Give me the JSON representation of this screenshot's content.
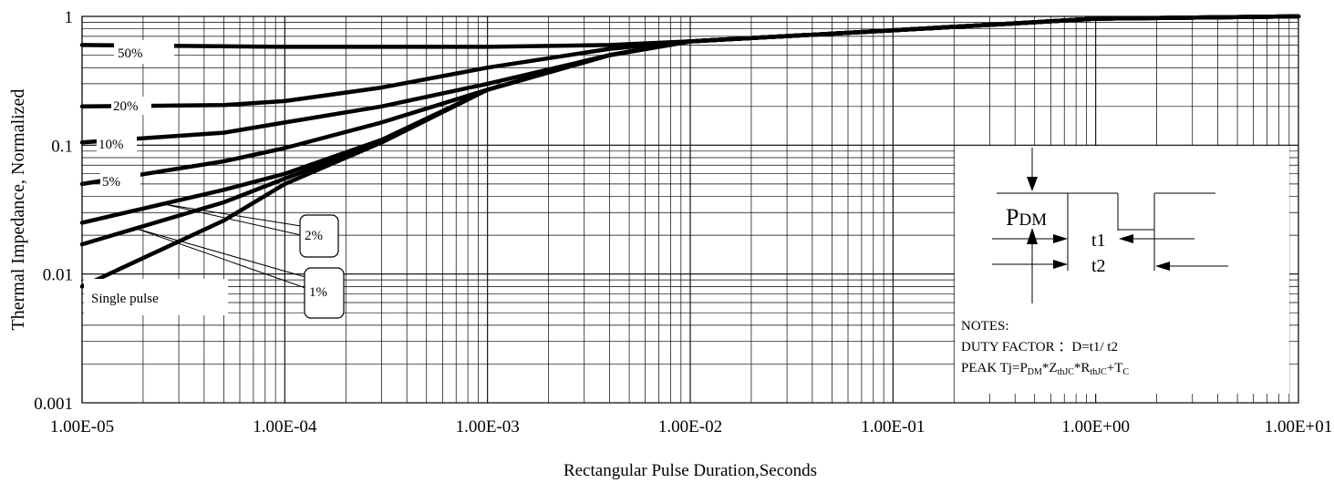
{
  "chart_data": {
    "type": "line",
    "xscale": "log",
    "yscale": "log",
    "xlim": [
      1e-05,
      10
    ],
    "ylim": [
      0.001,
      1
    ],
    "grid": true,
    "xlabel": "Rectangular Pulse Duration,Seconds",
    "ylabel": "Thermal Impedance, Normalized",
    "x_ticks": [
      {
        "value": 1e-05,
        "label": "1.00E-05"
      },
      {
        "value": 0.0001,
        "label": "1.00E-04"
      },
      {
        "value": 0.001,
        "label": "1.00E-03"
      },
      {
        "value": 0.01,
        "label": "1.00E-02"
      },
      {
        "value": 0.1,
        "label": "1.00E-01"
      },
      {
        "value": 1,
        "label": "1.00E+00"
      },
      {
        "value": 10,
        "label": "1.00E+01"
      }
    ],
    "y_ticks": [
      {
        "value": 1,
        "label": "1"
      },
      {
        "value": 0.1,
        "label": "0.1"
      },
      {
        "value": 0.01,
        "label": "0.01"
      },
      {
        "value": 0.001,
        "label": "0.001"
      }
    ],
    "series": [
      {
        "name": "50%",
        "x": [
          1e-05,
          0.0001,
          0.001,
          0.004,
          0.01,
          0.1,
          1,
          10
        ],
        "y": [
          0.6,
          0.58,
          0.58,
          0.6,
          0.64,
          0.78,
          0.96,
          1.0
        ]
      },
      {
        "name": "20%",
        "x": [
          1e-05,
          5e-05,
          0.0001,
          0.0003,
          0.001,
          0.004,
          0.01,
          0.1,
          1,
          10
        ],
        "y": [
          0.2,
          0.205,
          0.22,
          0.28,
          0.4,
          0.56,
          0.64,
          0.78,
          0.96,
          1.0
        ]
      },
      {
        "name": "10%",
        "x": [
          1e-05,
          5e-05,
          0.0001,
          0.0003,
          0.001,
          0.004,
          0.01,
          0.1,
          1,
          10
        ],
        "y": [
          0.105,
          0.125,
          0.15,
          0.2,
          0.3,
          0.5,
          0.64,
          0.78,
          0.96,
          1.0
        ]
      },
      {
        "name": "5%",
        "x": [
          1e-05,
          5e-05,
          0.0001,
          0.0003,
          0.001,
          0.004,
          0.01,
          0.1,
          1,
          10
        ],
        "y": [
          0.05,
          0.075,
          0.095,
          0.15,
          0.27,
          0.5,
          0.64,
          0.78,
          0.96,
          1.0
        ]
      },
      {
        "name": "2%",
        "x": [
          1e-05,
          5e-05,
          0.0001,
          0.0003,
          0.001,
          0.004,
          0.01,
          0.1,
          1,
          10
        ],
        "y": [
          0.025,
          0.045,
          0.06,
          0.11,
          0.27,
          0.5,
          0.64,
          0.78,
          0.96,
          1.0
        ]
      },
      {
        "name": "1%",
        "x": [
          1e-05,
          5e-05,
          0.0001,
          0.0003,
          0.001,
          0.004,
          0.01,
          0.1,
          1,
          10
        ],
        "y": [
          0.017,
          0.036,
          0.055,
          0.105,
          0.27,
          0.5,
          0.64,
          0.78,
          0.96,
          1.0
        ]
      },
      {
        "name": "Single pulse",
        "x": [
          1e-05,
          5e-05,
          0.0001,
          0.0003,
          0.001,
          0.004,
          0.01,
          0.1,
          1,
          10
        ],
        "y": [
          0.008,
          0.026,
          0.05,
          0.105,
          0.27,
          0.5,
          0.64,
          0.78,
          0.96,
          1.0
        ]
      }
    ],
    "inset": {
      "pdm": "PDM",
      "t1": "t1",
      "t2": "t2",
      "notes_title": "NOTES:",
      "duty_factor": "DUTY FACTOR ：D=t1/ t2",
      "peak_tj": "PEAK Tj=PDM*ZthJC*RthJC+TC"
    }
  }
}
